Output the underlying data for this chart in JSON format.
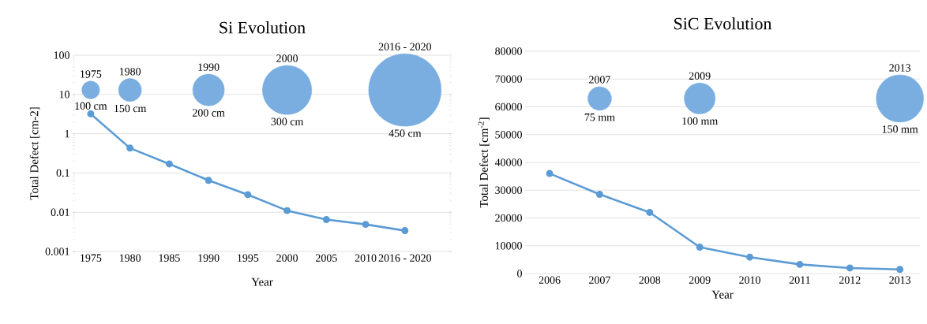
{
  "chart_data": [
    {
      "type": "line",
      "title": "Si Evolution",
      "xlabel": "Year",
      "ylabel": "Total Defect  [cm-2]",
      "categories": [
        "1975",
        "1980",
        "1985",
        "1990",
        "1995",
        "2000",
        "2005",
        "2010",
        "2016 - 2020"
      ],
      "log": "y",
      "ylim": [
        0.001,
        100
      ],
      "yticks": [
        0.001,
        0.01,
        0.1,
        1,
        10,
        100
      ],
      "grid": "y",
      "marker": "circle",
      "series": [
        {
          "color": "#5b9bd5",
          "values": [
            3.2,
            0.43,
            0.17,
            0.065,
            0.028,
            0.011,
            0.0065,
            0.0049,
            0.0034
          ]
        },
        {
          "type": "bubble",
          "color": "#7aaee0",
          "values": [
            13,
            13,
            null,
            13,
            null,
            13,
            null,
            null,
            13
          ],
          "sizes": [
            0.06,
            0.1,
            null,
            0.19,
            null,
            0.46,
            null,
            null,
            1
          ]
        }
      ],
      "annotations": [
        "1975",
        "100 cm",
        "1980",
        "150 cm",
        "1990",
        "200 cm",
        "2000",
        "300 cm",
        "2016 - 2020",
        "450 cm"
      ]
    },
    {
      "type": "line",
      "title": "SiC Evolution",
      "xlabel": "Year",
      "ylabel": "Total Defect [cm$^{-2}$]",
      "categories": [
        "2006",
        "2007",
        "2008",
        "2009",
        "2010",
        "2011",
        "2012",
        "2013"
      ],
      "ylim": [
        0,
        80000
      ],
      "yticks": [
        0,
        10000,
        20000,
        30000,
        40000,
        50000,
        60000,
        70000,
        80000
      ],
      "grid": "y",
      "marker": "circle",
      "series": [
        {
          "color": "#5b9bd5",
          "values": [
            36000,
            28500,
            22000,
            9500,
            5900,
            3300,
            2000,
            1500
          ]
        },
        {
          "type": "bubble",
          "color": "#7aaee0",
          "values": [
            null,
            63000,
            null,
            63000,
            null,
            null,
            null,
            63000
          ],
          "sizes": [
            null,
            0.25,
            null,
            0.43,
            null,
            null,
            null,
            1
          ]
        }
      ],
      "annotations": [
        "2007",
        "75 mm",
        "2009",
        "100 mm",
        "2013",
        "150 mm"
      ]
    }
  ]
}
